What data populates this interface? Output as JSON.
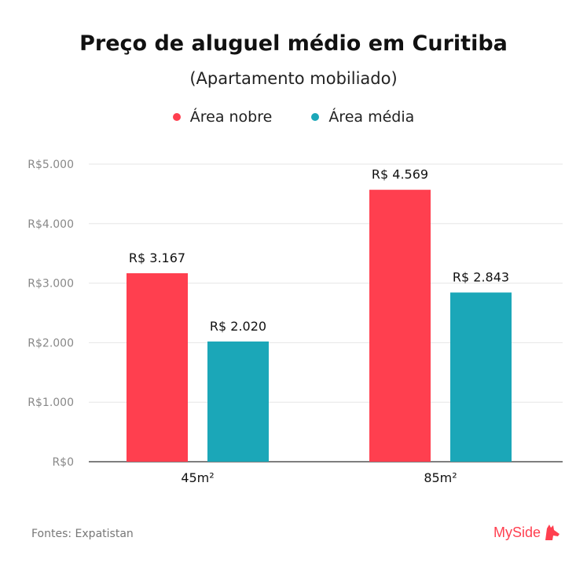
{
  "chart_data": {
    "type": "bar",
    "title": "Preço de aluguel médio em Curitiba",
    "subtitle": "(Apartamento mobiliado)",
    "categories": [
      "45m²",
      "85m²"
    ],
    "series": [
      {
        "name": "Área nobre",
        "values": [
          3167,
          4569
        ],
        "labels": [
          "R$ 3.167",
          "R$ 4.569"
        ],
        "color": "#ff3f4f"
      },
      {
        "name": "Área média",
        "values": [
          2020,
          2843
        ],
        "labels": [
          "R$ 2.020",
          "R$ 2.843"
        ],
        "color": "#1ba7b8"
      }
    ],
    "yticks": [
      0,
      1000,
      2000,
      3000,
      4000,
      5000
    ],
    "ytick_labels": [
      "R$0",
      "R$1.000",
      "R$2.000",
      "R$3.000",
      "R$4.000",
      "R$5.000"
    ],
    "ylim": [
      0,
      5000
    ],
    "grid": true,
    "legend": "top-center"
  },
  "source": "Fontes: Expatistan",
  "logo": {
    "text": "MySide",
    "icon": "dog-head-icon"
  }
}
